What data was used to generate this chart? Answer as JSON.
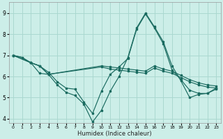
{
  "xlabel": "Humidex (Indice chaleur)",
  "bg_color": "#cceee8",
  "grid_color": "#aad8d0",
  "line_color": "#1a6b60",
  "xlim": [
    -0.5,
    23.5
  ],
  "ylim": [
    3.8,
    9.5
  ],
  "xticks": [
    0,
    1,
    2,
    3,
    4,
    5,
    6,
    7,
    8,
    9,
    10,
    11,
    12,
    13,
    14,
    15,
    16,
    17,
    18,
    19,
    20,
    21,
    22,
    23
  ],
  "yticks": [
    4,
    5,
    6,
    7,
    8,
    9
  ],
  "lines": [
    {
      "x": [
        0,
        1,
        2,
        3,
        4,
        5,
        6,
        7,
        8,
        9,
        10,
        11,
        12,
        13,
        14,
        15,
        16,
        17,
        18,
        19,
        20,
        21,
        22,
        23
      ],
      "y": [
        7.0,
        6.9,
        6.65,
        6.15,
        6.1,
        5.6,
        5.25,
        5.1,
        4.7,
        3.85,
        4.4,
        5.3,
        6.0,
        6.9,
        8.3,
        9.0,
        8.35,
        7.65,
        6.5,
        5.8,
        5.0,
        5.15,
        5.2,
        5.4
      ]
    },
    {
      "x": [
        0,
        1,
        2,
        3,
        4,
        5,
        6,
        7,
        8,
        9,
        10,
        11,
        12,
        13,
        14,
        15,
        16,
        17,
        18,
        19,
        20,
        21,
        22,
        23
      ],
      "y": [
        7.0,
        6.9,
        6.65,
        6.5,
        6.2,
        5.75,
        5.45,
        5.4,
        4.8,
        4.25,
        5.3,
        6.1,
        6.45,
        6.85,
        8.25,
        8.95,
        8.3,
        7.55,
        6.3,
        5.85,
        5.35,
        5.2,
        5.2,
        5.45
      ]
    },
    {
      "x": [
        0,
        2,
        3,
        4,
        10,
        11,
        12,
        13,
        14,
        15,
        16,
        17,
        18,
        19,
        20,
        21,
        22,
        23
      ],
      "y": [
        7.0,
        6.65,
        6.5,
        6.1,
        6.5,
        6.45,
        6.4,
        6.35,
        6.3,
        6.25,
        6.5,
        6.35,
        6.25,
        6.05,
        5.85,
        5.7,
        5.6,
        5.55
      ]
    },
    {
      "x": [
        0,
        2,
        3,
        4,
        10,
        11,
        12,
        13,
        14,
        15,
        16,
        17,
        18,
        19,
        20,
        21,
        22,
        23
      ],
      "y": [
        7.0,
        6.65,
        6.5,
        6.1,
        6.45,
        6.35,
        6.3,
        6.25,
        6.2,
        6.15,
        6.4,
        6.25,
        6.15,
        5.95,
        5.75,
        5.6,
        5.5,
        5.45
      ]
    }
  ]
}
